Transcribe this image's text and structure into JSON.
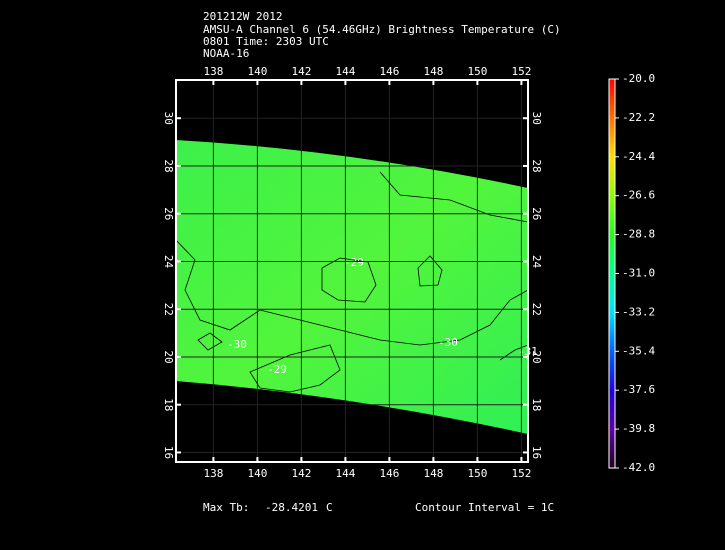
{
  "header": {
    "lines": [
      "201212W 2012",
      "AMSU-A Channel 6 (54.46GHz) Brightness Temperature (C)",
      "0801 Time: 2303 UTC",
      "NOAA-16"
    ]
  },
  "map": {
    "xlim": [
      136.3,
      152.3
    ],
    "xticks": [
      138,
      140,
      142,
      144,
      146,
      148,
      150,
      152
    ],
    "ylim": [
      15.6,
      31.6
    ],
    "yticks": [
      16,
      18,
      20,
      22,
      24,
      26,
      28,
      30
    ],
    "contour_labels": [
      "-29",
      "-30",
      "-29",
      "-30",
      "-31"
    ]
  },
  "colorbar": {
    "ylim": [
      -42,
      -20
    ],
    "ticks": [
      {
        "value": -20,
        "label": "-20.0"
      },
      {
        "value": -22.2,
        "label": "-22.2"
      },
      {
        "value": -24.4,
        "label": "-24.4"
      },
      {
        "value": -26.6,
        "label": "-26.6"
      },
      {
        "value": -28.8,
        "label": "-28.8"
      },
      {
        "value": -31,
        "label": "-31.0"
      },
      {
        "value": -33.2,
        "label": "-33.2"
      },
      {
        "value": -35.4,
        "label": "-35.4"
      },
      {
        "value": -37.6,
        "label": "-37.6"
      },
      {
        "value": -39.8,
        "label": "-39.8"
      },
      {
        "value": -42,
        "label": "-42.0"
      }
    ]
  },
  "footer": {
    "max_label": "Max Tb:",
    "max_value": "-28.4201",
    "unit": "C",
    "contour_interval": "Contour Interval = 1C"
  }
}
